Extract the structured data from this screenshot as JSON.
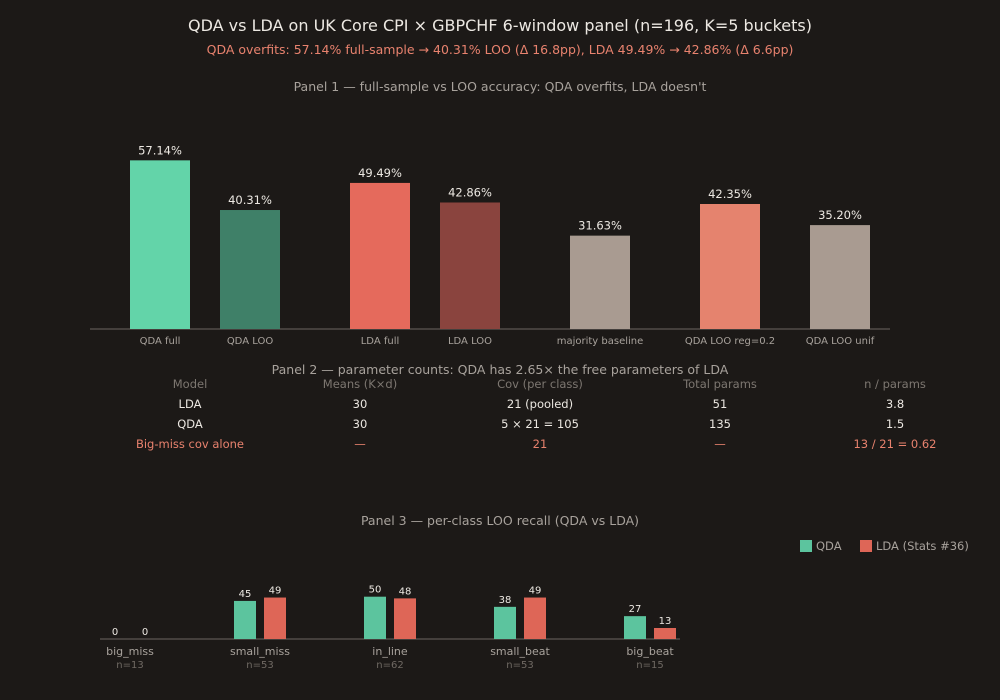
{
  "title": "QDA vs LDA on UK Core CPI × GBPCHF 6-window panel (n=196, K=5 buckets)",
  "subtitle": "QDA overfits: 57.14% full-sample → 40.31% LOO (Δ 16.8pp), LDA 49.49% → 42.86% (Δ 6.6pp)",
  "panel2": {
    "title": "Panel 2 — parameter counts: QDA has 2.65× the free parameters of LDA",
    "headers": [
      "Model",
      "Means (K×d)",
      "Cov (per class)",
      "Total params",
      "n / params"
    ],
    "rows": [
      [
        "LDA",
        "30",
        "21 (pooled)",
        "51",
        "3.8"
      ],
      [
        "QDA",
        "30",
        "5 × 21 = 105",
        "135",
        "1.5"
      ],
      [
        "Big-miss cov alone",
        "—",
        "21",
        "—",
        "13 / 21 = 0.62"
      ]
    ],
    "highlight_color": "#e8826e"
  },
  "chart_data": [
    {
      "type": "bar",
      "title": "Panel 1 — full-sample vs LOO accuracy: QDA overfits, LDA doesn't",
      "categories": [
        "QDA full",
        "QDA LOO",
        "LDA full",
        "LDA LOO",
        "majority baseline",
        "QDA LOO reg=0.2",
        "QDA LOO unif"
      ],
      "values": [
        57.14,
        40.31,
        49.49,
        42.86,
        31.63,
        42.35,
        35.2
      ],
      "labels": [
        "57.14%",
        "40.31%",
        "49.49%",
        "42.86%",
        "31.63%",
        "42.35%",
        "35.20%"
      ],
      "colors": [
        "#63d4a9",
        "#3f8068",
        "#e56a5c",
        "#8a443e",
        "#a99b91",
        "#e5836e",
        "#a99b91"
      ],
      "ylim": [
        0,
        62
      ],
      "grid": false
    },
    {
      "type": "bar",
      "title": "Panel 3 — per-class LOO recall (QDA vs LDA)",
      "categories": [
        "big_miss",
        "small_miss",
        "in_line",
        "small_beat",
        "big_beat"
      ],
      "sublabels": [
        "n=13",
        "n=53",
        "n=62",
        "n=53",
        "n=15"
      ],
      "series": [
        {
          "name": "QDA",
          "values": [
            0,
            45,
            50,
            38,
            27
          ],
          "color": "#5cc49e"
        },
        {
          "name": "LDA (Stats #36)",
          "values": [
            0,
            49,
            48,
            49,
            13
          ],
          "color": "#de6657"
        }
      ],
      "ylim": [
        0,
        52
      ],
      "legend": "top-right",
      "grid": false
    }
  ]
}
